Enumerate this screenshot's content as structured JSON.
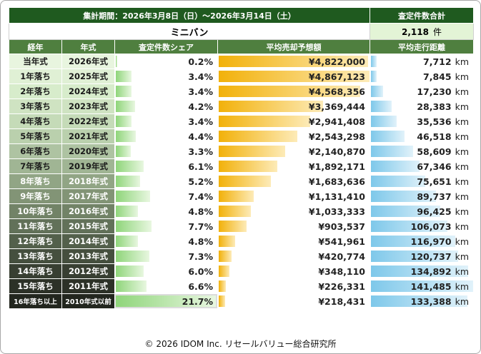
{
  "header": {
    "period": "集計期間：2026年3月8日（日）～2026年3月14日（土）",
    "total_label": "査定件数合計",
    "category": "ミニバン",
    "total_value": "2,118",
    "total_unit": "件"
  },
  "columns": [
    "経年",
    "年式",
    "査定件数シェア",
    "平均売却予想額",
    "平均走行距離"
  ],
  "km_unit": "km",
  "colors": {
    "header_dark": "#1f5a1f",
    "header_mid": "#4f7f3f",
    "share_bar": "#8fd57a",
    "price_bar": "#f2b10a",
    "distance_bar": "#7ec8ea",
    "total_bg": "#e3f4d6"
  },
  "rows": [
    {
      "age": "当年式",
      "year": "2026年式",
      "share": "0.2%",
      "share_pct": 0.2,
      "price": "¥4,822,000",
      "price_val": 4822000,
      "km": "7,712",
      "km_val": 7712,
      "age_bg": "#e8f5df",
      "dark": false
    },
    {
      "age": "1年落ち",
      "year": "2025年式",
      "share": "3.4%",
      "share_pct": 3.4,
      "price": "¥4,867,123",
      "price_val": 4867123,
      "km": "7,845",
      "km_val": 7845,
      "age_bg": "#e0f0d5",
      "dark": false
    },
    {
      "age": "2年落ち",
      "year": "2024年式",
      "share": "3.4%",
      "share_pct": 3.4,
      "price": "¥4,568,356",
      "price_val": 4568356,
      "km": "17,230",
      "km_val": 17230,
      "age_bg": "#d7eccb",
      "dark": false
    },
    {
      "age": "3年落ち",
      "year": "2023年式",
      "share": "4.2%",
      "share_pct": 4.2,
      "price": "¥3,369,444",
      "price_val": 3369444,
      "km": "28,383",
      "km_val": 28383,
      "age_bg": "#cfe3c2",
      "dark": false
    },
    {
      "age": "4年落ち",
      "year": "2022年式",
      "share": "3.4%",
      "share_pct": 3.4,
      "price": "¥2,941,408",
      "price_val": 2941408,
      "km": "35,536",
      "km_val": 35536,
      "age_bg": "#c5dbb8",
      "dark": false
    },
    {
      "age": "5年落ち",
      "year": "2021年式",
      "share": "4.4%",
      "share_pct": 4.4,
      "price": "¥2,543,298",
      "price_val": 2543298,
      "km": "46,518",
      "km_val": 46518,
      "age_bg": "#bad0ad",
      "dark": false
    },
    {
      "age": "6年落ち",
      "year": "2020年式",
      "share": "3.3%",
      "share_pct": 3.3,
      "price": "¥2,140,870",
      "price_val": 2140870,
      "km": "58,609",
      "km_val": 58609,
      "age_bg": "#aec3a2",
      "dark": false
    },
    {
      "age": "7年落ち",
      "year": "2019年式",
      "share": "6.1%",
      "share_pct": 6.1,
      "price": "¥1,892,171",
      "price_val": 1892171,
      "km": "67,346",
      "km_val": 67346,
      "age_bg": "#a0b594",
      "dark": false
    },
    {
      "age": "8年落ち",
      "year": "2018年式",
      "share": "5.2%",
      "share_pct": 5.2,
      "price": "¥1,683,636",
      "price_val": 1683636,
      "km": "75,651",
      "km_val": 75651,
      "age_bg": "#91a585",
      "dark": true
    },
    {
      "age": "9年落ち",
      "year": "2017年式",
      "share": "7.4%",
      "share_pct": 7.4,
      "price": "¥1,131,410",
      "price_val": 1131410,
      "km": "89,737",
      "km_val": 89737,
      "age_bg": "#829476",
      "dark": true
    },
    {
      "age": "10年落ち",
      "year": "2016年式",
      "share": "4.8%",
      "share_pct": 4.8,
      "price": "¥1,033,333",
      "price_val": 1033333,
      "km": "96,425",
      "km_val": 96425,
      "age_bg": "#728367",
      "dark": true
    },
    {
      "age": "11年落ち",
      "year": "2015年式",
      "share": "7.7%",
      "share_pct": 7.7,
      "price": "¥903,537",
      "price_val": 903537,
      "km": "106,073",
      "km_val": 106073,
      "age_bg": "#627159",
      "dark": true
    },
    {
      "age": "12年落ち",
      "year": "2014年式",
      "share": "4.8%",
      "share_pct": 4.8,
      "price": "¥541,961",
      "price_val": 541961,
      "km": "116,970",
      "km_val": 116970,
      "age_bg": "#53604b",
      "dark": true
    },
    {
      "age": "13年落ち",
      "year": "2013年式",
      "share": "7.3%",
      "share_pct": 7.3,
      "price": "¥420,774",
      "price_val": 420774,
      "km": "120,737",
      "km_val": 120737,
      "age_bg": "#454f3e",
      "dark": true
    },
    {
      "age": "14年落ち",
      "year": "2012年式",
      "share": "6.0%",
      "share_pct": 6.0,
      "price": "¥348,110",
      "price_val": 348110,
      "km": "134,892",
      "km_val": 134892,
      "age_bg": "#383f32",
      "dark": true
    },
    {
      "age": "15年落ち",
      "year": "2011年式",
      "share": "6.6%",
      "share_pct": 6.6,
      "price": "¥226,331",
      "price_val": 226331,
      "km": "141,485",
      "km_val": 141485,
      "age_bg": "#2c3127",
      "dark": true
    },
    {
      "age": "16年落ち以上",
      "year": "2010年式以前",
      "share": "21.7%",
      "share_pct": 21.7,
      "price": "¥218,431",
      "price_val": 218431,
      "km": "133,388",
      "km_val": 133388,
      "age_bg": "#22261e",
      "dark": true
    }
  ],
  "footer": "© 2026 IDOM Inc. リセールバリュー総合研究所"
}
